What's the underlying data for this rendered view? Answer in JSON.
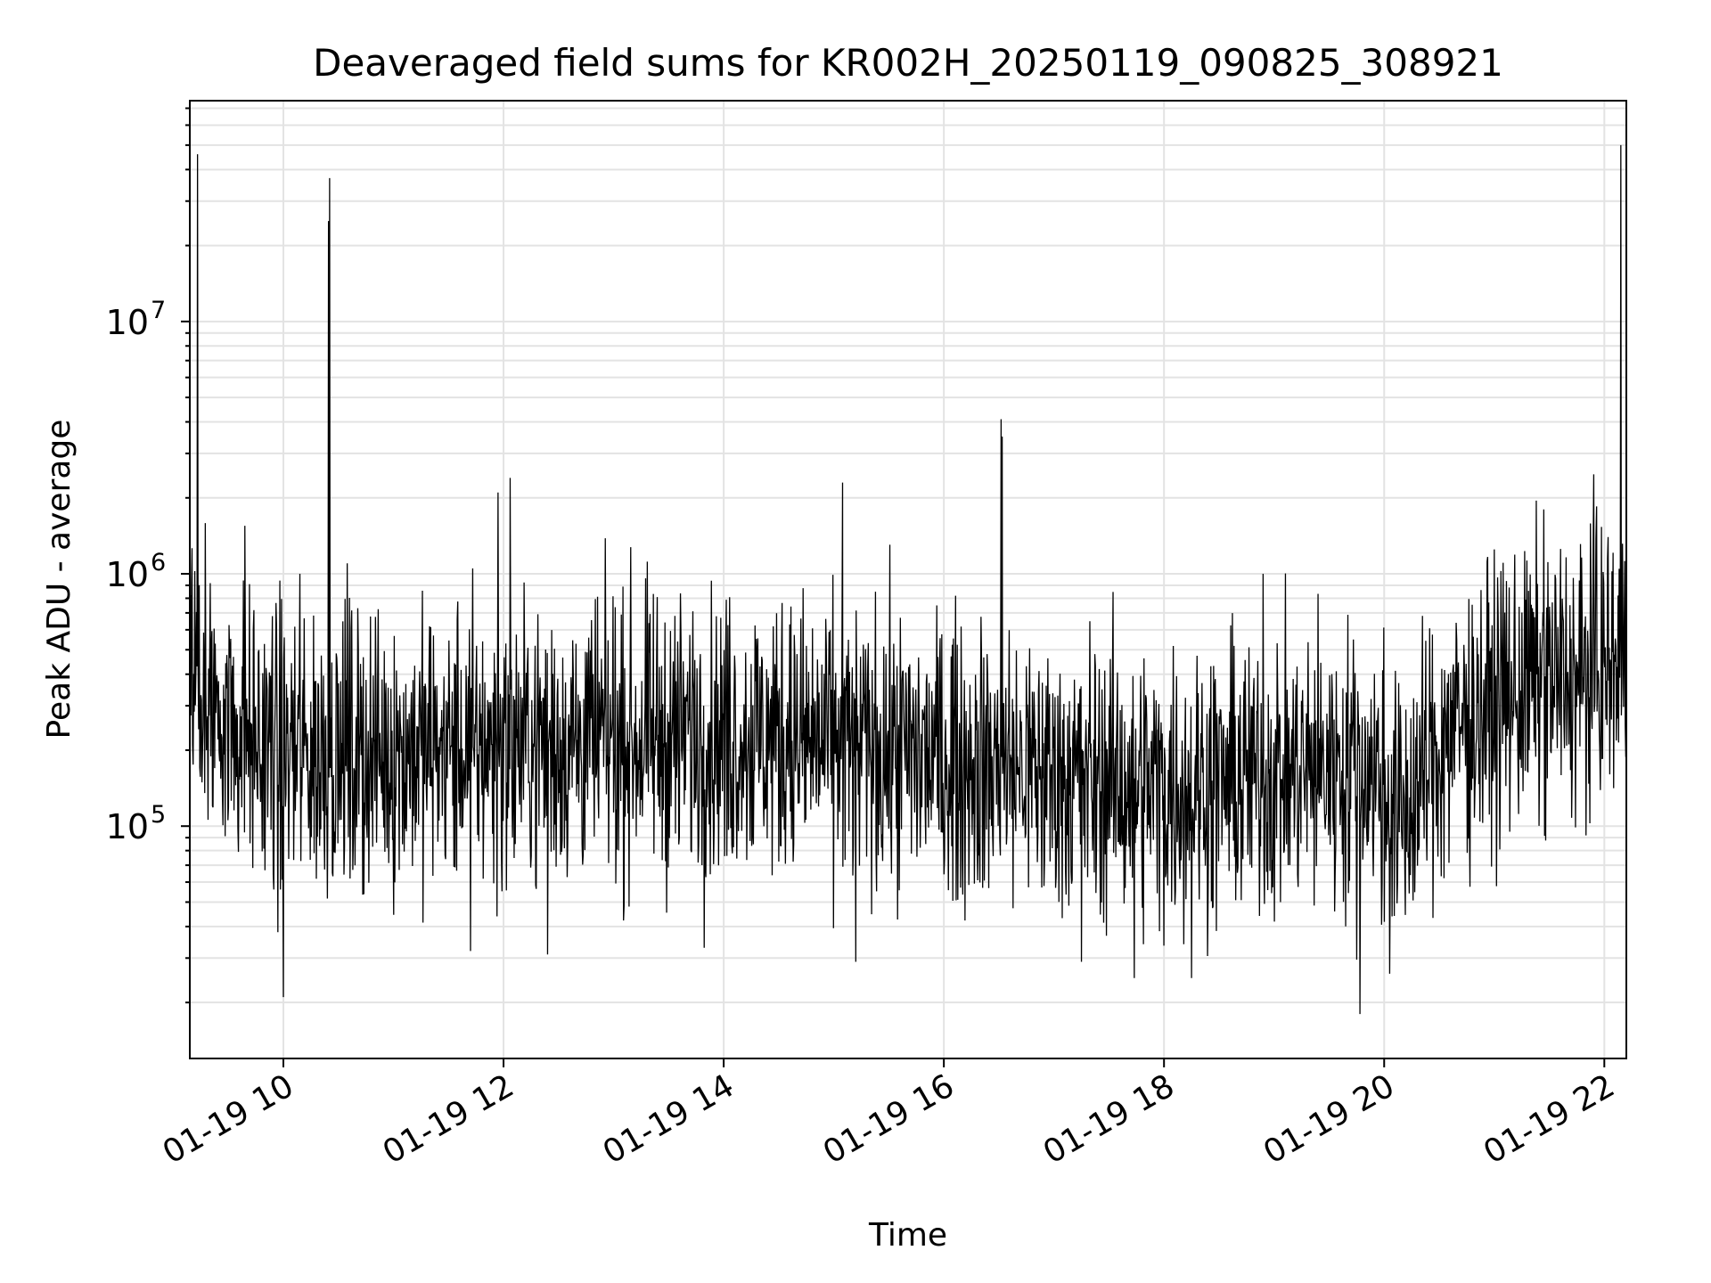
{
  "chart_data": {
    "type": "line",
    "title": "Deaveraged field sums for KR002H_20250119_090825_308921",
    "xlabel": "Time",
    "ylabel": "Peak ADU - average",
    "yscale": "log",
    "xlim_hours": [
      9.15,
      22.2
    ],
    "ylim": [
      12000,
      75000000
    ],
    "grid": true,
    "x_tick_hours": [
      10,
      12,
      14,
      16,
      18,
      20,
      22
    ],
    "x_tick_labels": [
      "01-19 10",
      "01-19 12",
      "01-19 14",
      "01-19 16",
      "01-19 18",
      "01-19 20",
      "01-19 22"
    ],
    "y_ticks": [
      100000,
      1000000,
      10000000
    ],
    "y_tick_labels": [
      {
        "base": "10",
        "exp": "5"
      },
      {
        "base": "10",
        "exp": "6"
      },
      {
        "base": "10",
        "exp": "7"
      }
    ],
    "series": [
      {
        "name": "Peak ADU - average",
        "color": "#000000",
        "baseline_profile": [
          {
            "t": 9.15,
            "v": 520000
          },
          {
            "t": 9.4,
            "v": 300000
          },
          {
            "t": 9.8,
            "v": 200000
          },
          {
            "t": 10.5,
            "v": 190000
          },
          {
            "t": 12.0,
            "v": 210000
          },
          {
            "t": 14.2,
            "v": 230000
          },
          {
            "t": 16.0,
            "v": 185000
          },
          {
            "t": 17.0,
            "v": 160000
          },
          {
            "t": 18.0,
            "v": 140000
          },
          {
            "t": 19.2,
            "v": 165000
          },
          {
            "t": 19.85,
            "v": 175000
          },
          {
            "t": 20.15,
            "v": 105000
          },
          {
            "t": 20.6,
            "v": 240000
          },
          {
            "t": 21.3,
            "v": 360000
          },
          {
            "t": 21.8,
            "v": 380000
          },
          {
            "t": 22.2,
            "v": 460000
          }
        ],
        "noise_spread_dex": 0.28,
        "spikes": [
          {
            "t": 9.22,
            "v": 46000000
          },
          {
            "t": 10.42,
            "v": 37000000
          },
          {
            "t": 10.41,
            "v": 25000000
          },
          {
            "t": 10.58,
            "v": 1100000
          },
          {
            "t": 10.15,
            "v": 1000000
          },
          {
            "t": 11.95,
            "v": 2100000
          },
          {
            "t": 12.06,
            "v": 2400000
          },
          {
            "t": 15.08,
            "v": 2300000
          },
          {
            "t": 16.52,
            "v": 4100000
          },
          {
            "t": 16.53,
            "v": 3500000
          },
          {
            "t": 22.15,
            "v": 50000000
          },
          {
            "t": 9.65,
            "v": 1550000
          },
          {
            "t": 18.9,
            "v": 1000000
          },
          {
            "t": 21.45,
            "v": 1800000
          },
          {
            "t": 21.93,
            "v": 1850000
          },
          {
            "t": 9.9,
            "v": 680000
          },
          {
            "t": 13.72,
            "v": 710000
          },
          {
            "t": 14.6,
            "v": 630000
          }
        ],
        "dips": [
          {
            "t": 10.0,
            "v": 21000
          },
          {
            "t": 19.78,
            "v": 18000
          },
          {
            "t": 17.73,
            "v": 25000
          },
          {
            "t": 18.25,
            "v": 25000
          },
          {
            "t": 20.05,
            "v": 26000
          },
          {
            "t": 17.25,
            "v": 29000
          },
          {
            "t": 15.2,
            "v": 29000
          },
          {
            "t": 12.4,
            "v": 31000
          },
          {
            "t": 9.95,
            "v": 38000
          },
          {
            "t": 11.7,
            "v": 32000
          }
        ]
      }
    ]
  }
}
